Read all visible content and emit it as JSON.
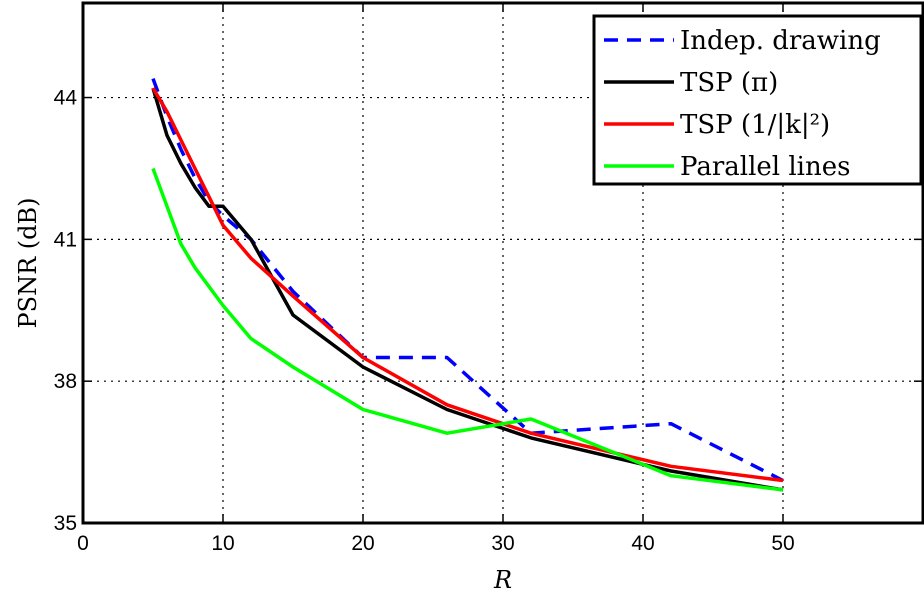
{
  "chart_data": {
    "type": "line",
    "title": "",
    "xlabel": "R",
    "ylabel": "PSNR (dB)",
    "xlim": [
      0,
      60
    ],
    "ylim": [
      35,
      46
    ],
    "xticks": [
      0,
      10,
      20,
      30,
      40,
      50
    ],
    "yticks": [
      35,
      38,
      41,
      44
    ],
    "grid": true,
    "legend_position": "top-right",
    "series": [
      {
        "name": "Indep. drawing",
        "color": "#0000ff",
        "style": "dashed",
        "x": [
          5,
          6,
          7,
          8,
          9,
          10,
          12,
          15,
          20,
          26,
          32,
          42,
          50
        ],
        "y": [
          44.4,
          43.6,
          42.9,
          42.3,
          41.8,
          41.5,
          41.0,
          39.9,
          38.5,
          38.5,
          36.9,
          37.1,
          35.9
        ]
      },
      {
        "name": "TSP (π)",
        "color": "#000000",
        "style": "solid",
        "x": [
          5,
          6,
          7,
          8,
          9,
          10,
          12,
          15,
          20,
          26,
          32,
          42,
          50
        ],
        "y": [
          44.2,
          43.2,
          42.6,
          42.1,
          41.7,
          41.7,
          41.0,
          39.4,
          38.3,
          37.4,
          36.8,
          36.1,
          35.7
        ]
      },
      {
        "name": "TSP (1/|k|²)",
        "color": "#ff0000",
        "style": "solid",
        "x": [
          5,
          6,
          7,
          8,
          9,
          10,
          12,
          15,
          20,
          26,
          32,
          42,
          50
        ],
        "y": [
          44.2,
          43.7,
          43.1,
          42.5,
          41.9,
          41.3,
          40.6,
          39.8,
          38.5,
          37.5,
          36.9,
          36.2,
          35.9
        ]
      },
      {
        "name": "Parallel lines",
        "color": "#00ff00",
        "style": "solid",
        "x": [
          5,
          6,
          7,
          8,
          9,
          10,
          12,
          15,
          20,
          26,
          32,
          42,
          50
        ],
        "y": [
          42.5,
          41.7,
          40.9,
          40.4,
          40.0,
          39.6,
          38.9,
          38.3,
          37.4,
          36.9,
          37.2,
          36.0,
          35.7
        ]
      }
    ]
  }
}
